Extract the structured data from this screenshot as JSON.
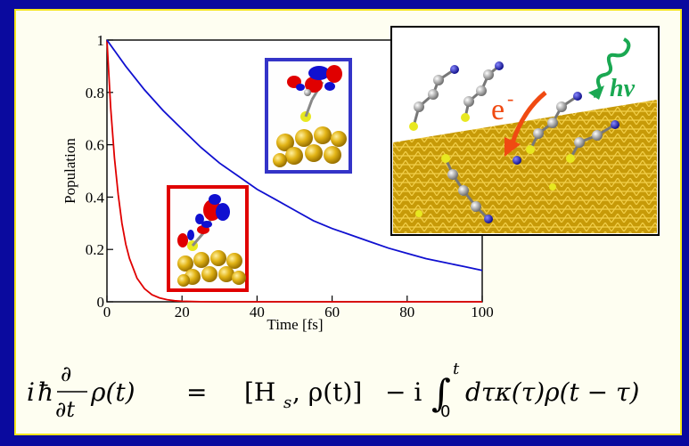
{
  "colors": {
    "background": "#0a0a9e",
    "panel": "#fefef1",
    "panel_border": "#f5e61c",
    "decay_fast": "#e00000",
    "decay_slow": "#1010d0",
    "inset_fast_frame": "#e00000",
    "inset_slow_frame": "#3434c8",
    "gold": "#d8aa10",
    "electron_arrow": "#f04a12",
    "photon": "#1aa852"
  },
  "chart_data": {
    "type": "line",
    "xlabel": "Time [fs]",
    "ylabel": "Population",
    "xlim": [
      0,
      100
    ],
    "ylim": [
      0,
      1
    ],
    "x_ticks": [
      "0",
      "20",
      "40",
      "60",
      "80",
      "100"
    ],
    "y_ticks": [
      "0",
      "0.2",
      "0.4",
      "0.6",
      "0.8",
      "1"
    ],
    "grid": false,
    "series": [
      {
        "color": "#e00000",
        "x": [
          0,
          1,
          2,
          3,
          4,
          5,
          6,
          8,
          10,
          12,
          14,
          16,
          18,
          20,
          25,
          30,
          40,
          60,
          80,
          100
        ],
        "y": [
          1.0,
          0.74,
          0.55,
          0.41,
          0.3,
          0.22,
          0.165,
          0.09,
          0.05,
          0.027,
          0.015,
          0.008,
          0.004,
          0.002,
          0.0005,
          0.0001,
          0,
          0,
          0,
          0
        ]
      },
      {
        "color": "#1010d0",
        "x": [
          0,
          5,
          10,
          15,
          20,
          25,
          30,
          35,
          40,
          45,
          50,
          55,
          60,
          65,
          70,
          75,
          80,
          85,
          90,
          95,
          100
        ],
        "y": [
          1.0,
          0.9,
          0.81,
          0.73,
          0.66,
          0.59,
          0.53,
          0.48,
          0.43,
          0.39,
          0.35,
          0.31,
          0.28,
          0.255,
          0.23,
          0.205,
          0.185,
          0.165,
          0.15,
          0.135,
          0.12
        ]
      }
    ]
  },
  "illustration": {
    "electron_label": "e",
    "electron_charge": "-",
    "photon_label": "hν"
  },
  "equation": {
    "lhs_i": "i",
    "lhs_hbar": "ħ",
    "partial_num": "∂",
    "partial_den": "∂t",
    "lhs_rho": "ρ(t)",
    "equals": "=",
    "commutator": "[H",
    "commutator_sub": "s",
    "commutator_rest": ", ρ(t)]",
    "minus_i": "− i",
    "integral": "∫",
    "upper_limit": "t",
    "lower_limit": "0",
    "integrand": "dτκ(τ)ρ(t − τ)"
  }
}
